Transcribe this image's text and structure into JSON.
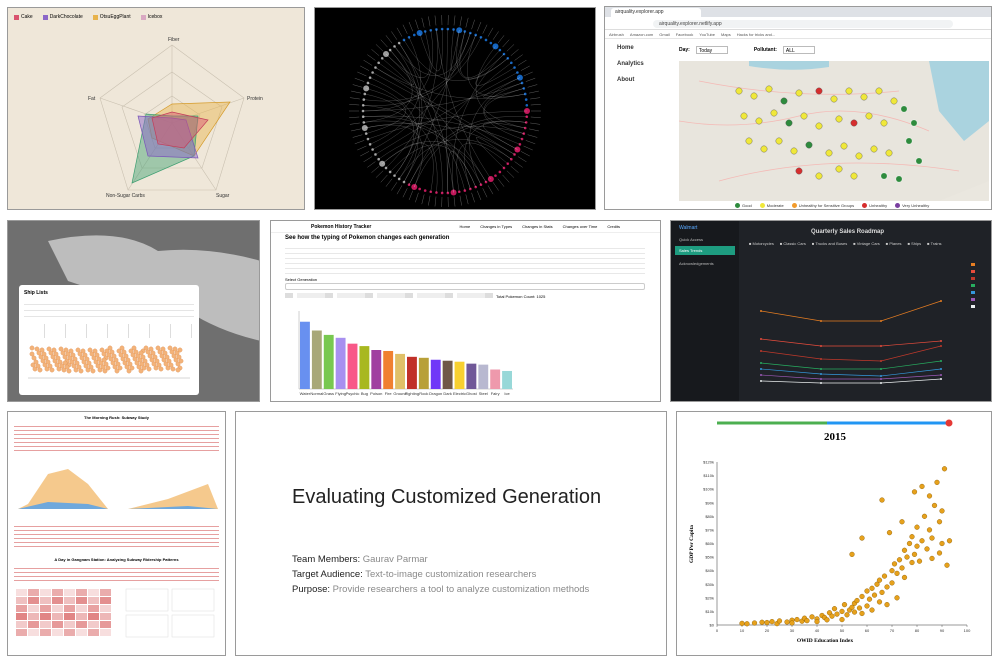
{
  "panel1": {
    "legend": [
      "Cake",
      "DarkChocolate",
      "OtsuEggPlant",
      "Icebox"
    ],
    "legend_colors": [
      "#d9536f",
      "#8c67c8",
      "#e8b34c",
      "#d9a8c2"
    ],
    "axes": [
      "Fiber",
      "Protein",
      "Sugar",
      "Non-Sugar Carbs",
      "Fat"
    ]
  },
  "panel3": {
    "tab": "airquality.explorer.app",
    "url": "airquality.explorer.netlify.app",
    "bookmarks": [
      "Airbrush",
      "Amazon.com",
      "Gmail",
      "Facebook",
      "YouTube",
      "Maps",
      "Hacks for tricks and..."
    ],
    "nav": [
      "Home",
      "Analytics",
      "About"
    ],
    "day_label": "Day:",
    "day_value": "Today",
    "pollutant_label": "Pollutant:",
    "pollutant_value": "ALL",
    "legend": [
      {
        "label": "Good",
        "color": "#2e8b3d"
      },
      {
        "label": "Moderate",
        "color": "#f0e83a"
      },
      {
        "label": "Unhealthy for Sensitive Groups",
        "color": "#f29b2b"
      },
      {
        "label": "Unhealthy",
        "color": "#d62e2e"
      },
      {
        "label": "Very Unhealthy",
        "color": "#7a3fa0"
      }
    ]
  },
  "panel4": {
    "card_title": "Ship Lists"
  },
  "panel5": {
    "brand": "Pokemon History Tracker",
    "nav": [
      "Home",
      "Changes in Types",
      "Changes in Stats",
      "Changes over Time",
      "Credits"
    ],
    "title": "See how the typing of Pokemon changes each generation",
    "count": "Total Pokemon Count: 1025",
    "generation_label": "Select Generation",
    "bars": {
      "types": [
        "Water",
        "Normal",
        "Grass",
        "Flying",
        "Psychic",
        "Bug",
        "Poison",
        "Fire",
        "Ground",
        "Fighting",
        "Rock",
        "Dragon",
        "Dark",
        "Electric",
        "Ghost",
        "Steel",
        "Fairy",
        "Ice"
      ],
      "values": [
        138,
        120,
        111,
        105,
        93,
        88,
        80,
        78,
        72,
        66,
        64,
        60,
        58,
        56,
        52,
        50,
        40,
        37
      ],
      "colors": [
        "#6890f0",
        "#a8a878",
        "#78c850",
        "#a890f0",
        "#f85888",
        "#a8b820",
        "#a040a0",
        "#f08030",
        "#e0c068",
        "#c03028",
        "#b8a038",
        "#7038f8",
        "#705848",
        "#f8d030",
        "#705898",
        "#b8b8d0",
        "#ee99ac",
        "#98d8d8"
      ],
      "ymax": 160
    }
  },
  "panel6": {
    "brand": "Walmart",
    "quick_access": "Quick Access",
    "button": "Sales Trends",
    "ann": "Acknowledgements",
    "title": "Quarterly Sales Roadmap",
    "filters": [
      "Motorcycles",
      "Classic Cars",
      "Trucks and Buses",
      "Vintage Cars",
      "Planes",
      "Ships",
      "Trains"
    ]
  },
  "panel7": {
    "title": "The Morning Rush: Subway Study",
    "section2": "A Day in Gangnam Station: Analyzing Subway Ridership Patterns"
  },
  "panel8": {
    "title": "Evaluating Customized Generation",
    "rows": [
      {
        "label": "Team Members:",
        "value": "Gaurav Parmar"
      },
      {
        "label": "Target Audience:",
        "value": "Text-to-image customization researchers"
      },
      {
        "label": "Purpose:",
        "value": "Provide researchers a tool to analyze customization methods"
      }
    ]
  },
  "panel9": {
    "year": "2015",
    "xlabel": "OWID Education Index",
    "ylabel": "GDP Per Capita",
    "chart_data": {
      "type": "scatter",
      "title": "2015",
      "xlabel": "OWID Education Index",
      "ylabel": "GDP Per Capita",
      "xlim": [
        0,
        100
      ],
      "ylim": [
        0,
        120000
      ],
      "xticks": [
        0,
        10,
        20,
        30,
        40,
        50,
        60,
        70,
        80,
        90,
        100
      ],
      "yticks": [
        "$0",
        "$10k",
        "$20k",
        "$30k",
        "$40k",
        "$50k",
        "$60k",
        "$70k",
        "$80k",
        "$90k",
        "$100k",
        "$110k",
        "$120k"
      ],
      "points": [
        [
          10,
          1200
        ],
        [
          12,
          900
        ],
        [
          15,
          1500
        ],
        [
          18,
          2000
        ],
        [
          20,
          1800
        ],
        [
          22,
          2500
        ],
        [
          24,
          1000
        ],
        [
          25,
          3000
        ],
        [
          28,
          2200
        ],
        [
          30,
          3500
        ],
        [
          30,
          1500
        ],
        [
          32,
          4000
        ],
        [
          34,
          2800
        ],
        [
          35,
          5000
        ],
        [
          36,
          3200
        ],
        [
          38,
          6000
        ],
        [
          40,
          4500
        ],
        [
          40,
          2500
        ],
        [
          42,
          7000
        ],
        [
          43,
          5500
        ],
        [
          44,
          3800
        ],
        [
          45,
          9000
        ],
        [
          46,
          6500
        ],
        [
          47,
          12000
        ],
        [
          48,
          8000
        ],
        [
          50,
          10000
        ],
        [
          50,
          4000
        ],
        [
          51,
          15000
        ],
        [
          52,
          7500
        ],
        [
          53,
          11000
        ],
        [
          54,
          13000
        ],
        [
          55,
          9500
        ],
        [
          55,
          16000
        ],
        [
          56,
          18000
        ],
        [
          57,
          12500
        ],
        [
          58,
          21000
        ],
        [
          58,
          8500
        ],
        [
          60,
          14000
        ],
        [
          60,
          25000
        ],
        [
          61,
          19000
        ],
        [
          62,
          27000
        ],
        [
          62,
          11000
        ],
        [
          63,
          22000
        ],
        [
          64,
          30000
        ],
        [
          65,
          17000
        ],
        [
          65,
          33000
        ],
        [
          66,
          24000
        ],
        [
          67,
          36000
        ],
        [
          68,
          28000
        ],
        [
          68,
          15000
        ],
        [
          70,
          40000
        ],
        [
          70,
          31000
        ],
        [
          71,
          45000
        ],
        [
          72,
          38000
        ],
        [
          72,
          20000
        ],
        [
          73,
          48000
        ],
        [
          74,
          42000
        ],
        [
          75,
          55000
        ],
        [
          75,
          35000
        ],
        [
          76,
          50000
        ],
        [
          77,
          60000
        ],
        [
          78,
          46000
        ],
        [
          78,
          65000
        ],
        [
          79,
          52000
        ],
        [
          80,
          58000
        ],
        [
          80,
          72000
        ],
        [
          81,
          47000
        ],
        [
          82,
          62000
        ],
        [
          83,
          80000
        ],
        [
          84,
          56000
        ],
        [
          85,
          70000
        ],
        [
          85,
          95000
        ],
        [
          86,
          64000
        ],
        [
          87,
          88000
        ],
        [
          88,
          105000
        ],
        [
          89,
          76000
        ],
        [
          90,
          84000
        ],
        [
          90,
          60000
        ],
        [
          91,
          115000
        ],
        [
          82,
          102000
        ],
        [
          79,
          98000
        ],
        [
          66,
          92000
        ],
        [
          74,
          76000
        ],
        [
          69,
          68000
        ],
        [
          58,
          64000
        ],
        [
          54,
          52000
        ],
        [
          86,
          49000
        ],
        [
          89,
          53000
        ],
        [
          92,
          44000
        ],
        [
          93,
          62000
        ]
      ]
    }
  }
}
